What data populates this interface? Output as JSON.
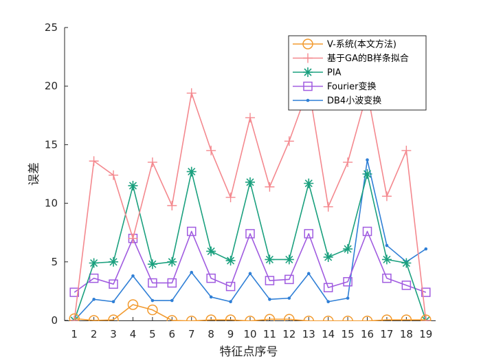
{
  "chart_data": {
    "type": "line",
    "xlabel": "特征点序号",
    "ylabel": "误差",
    "xlim": [
      0.5,
      19.5
    ],
    "ylim": [
      0,
      25
    ],
    "x": [
      1,
      2,
      3,
      4,
      5,
      6,
      7,
      8,
      9,
      10,
      11,
      12,
      13,
      14,
      15,
      16,
      17,
      18,
      19
    ],
    "x_ticks": [
      "1",
      "2",
      "3",
      "4",
      "5",
      "6",
      "7",
      "8",
      "9",
      "10",
      "11",
      "12",
      "13",
      "14",
      "15",
      "16",
      "17",
      "18",
      "19"
    ],
    "y_ticks": [
      "0",
      "5",
      "10",
      "15",
      "20",
      "25"
    ],
    "y_tick_values": [
      0,
      5,
      10,
      15,
      20,
      25
    ],
    "grid": false,
    "legend_position": "top-right",
    "series": [
      {
        "name": "V-系统(本文方法)",
        "color": "#f29a2e",
        "marker": "circle",
        "values": [
          0.15,
          0.0,
          0.05,
          1.35,
          0.9,
          0.0,
          -0.05,
          0.05,
          0.05,
          -0.05,
          0.1,
          0.1,
          -0.05,
          -0.05,
          -0.05,
          -0.05,
          0.05,
          0.05,
          0.05
        ]
      },
      {
        "name": "基于GA的B样条拟合",
        "color": "#f4888e",
        "marker": "plus",
        "values": [
          0.0,
          13.6,
          12.4,
          7.0,
          13.5,
          9.8,
          19.4,
          14.5,
          10.5,
          17.3,
          11.4,
          15.3,
          19.9,
          9.7,
          13.5,
          19.5,
          10.6,
          14.5,
          0.0
        ]
      },
      {
        "name": "PIA",
        "color": "#1aa07e",
        "marker": "asterisk",
        "values": [
          0.0,
          4.9,
          5.0,
          11.5,
          4.8,
          5.0,
          12.7,
          5.9,
          5.1,
          11.8,
          5.2,
          5.2,
          11.7,
          5.4,
          6.1,
          12.5,
          5.2,
          4.9,
          0.0
        ]
      },
      {
        "name": "Fourier变换",
        "color": "#a05be0",
        "marker": "square",
        "values": [
          2.4,
          3.6,
          3.1,
          7.0,
          3.2,
          3.2,
          7.6,
          3.6,
          2.9,
          7.4,
          3.4,
          3.5,
          7.4,
          2.8,
          3.3,
          7.6,
          3.6,
          3.0,
          2.4
        ]
      },
      {
        "name": "DB4小波变换",
        "color": "#2f7fd6",
        "marker": "dot",
        "values": [
          0.0,
          1.8,
          1.6,
          3.8,
          1.7,
          1.7,
          4.1,
          2.0,
          1.6,
          4.0,
          1.8,
          1.9,
          4.0,
          1.6,
          1.9,
          13.7,
          6.4,
          5.0,
          6.1
        ]
      }
    ]
  }
}
